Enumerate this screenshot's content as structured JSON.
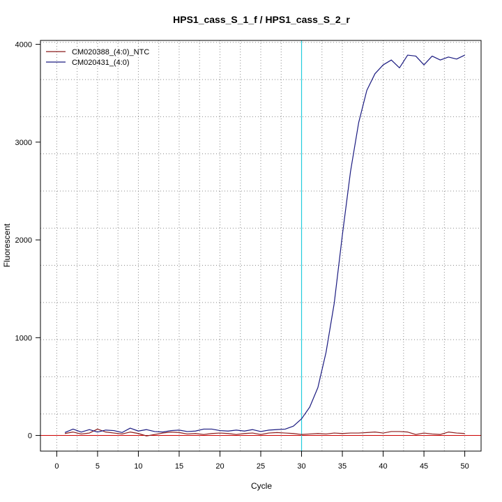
{
  "chart_data": {
    "type": "line",
    "title": "HPS1_cass_S_1_f / HPS1_cass_S_2_r",
    "xlabel": "Cycle",
    "ylabel": "Fluorescent",
    "xlim": [
      -2,
      52
    ],
    "ylim": [
      -160,
      4040
    ],
    "x_ticks": [
      0,
      5,
      10,
      15,
      20,
      25,
      30,
      35,
      40,
      45,
      50
    ],
    "y_ticks": [
      0,
      1000,
      2000,
      3000,
      4000
    ],
    "x_tick_labels": [
      "0",
      "5",
      "10",
      "15",
      "20",
      "25",
      "30",
      "35",
      "40",
      "45",
      "50"
    ],
    "y_tick_labels": [
      "0",
      "1000",
      "2000",
      "3000",
      "4000"
    ],
    "grid": true,
    "grid_x_every": 2.5,
    "grid_y_every": 380,
    "threshold_x": 30,
    "threshold_color": "#22ccdd",
    "baseline_y": 0,
    "baseline_color": "#cc0000",
    "legend_position": "top-left",
    "x": [
      1,
      2,
      3,
      4,
      5,
      6,
      7,
      8,
      9,
      10,
      11,
      12,
      13,
      14,
      15,
      16,
      17,
      18,
      19,
      20,
      21,
      22,
      23,
      24,
      25,
      26,
      27,
      28,
      29,
      30,
      31,
      32,
      33,
      34,
      35,
      36,
      37,
      38,
      39,
      40,
      41,
      42,
      43,
      44,
      45,
      46,
      47,
      48,
      49,
      50
    ],
    "series": [
      {
        "name": "CM020388_(4:0)_NTC",
        "color": "#8b1a1a",
        "values": [
          20,
          35,
          15,
          25,
          65,
          35,
          25,
          15,
          35,
          20,
          -5,
          10,
          25,
          35,
          30,
          15,
          20,
          10,
          20,
          25,
          20,
          10,
          20,
          25,
          10,
          25,
          30,
          25,
          20,
          10,
          15,
          20,
          15,
          25,
          20,
          25,
          25,
          30,
          35,
          25,
          40,
          40,
          35,
          10,
          25,
          15,
          10,
          35,
          25,
          20
        ]
      },
      {
        "name": "CM020431_(4:0)",
        "color": "#1a1a80",
        "values": [
          30,
          65,
          35,
          60,
          35,
          55,
          50,
          30,
          75,
          45,
          60,
          40,
          35,
          50,
          55,
          40,
          45,
          65,
          65,
          50,
          45,
          55,
          45,
          60,
          40,
          55,
          60,
          65,
          95,
          170,
          290,
          490,
          850,
          1350,
          2050,
          2700,
          3200,
          3530,
          3700,
          3790,
          3840,
          3760,
          3890,
          3880,
          3790,
          3880,
          3840,
          3870,
          3850,
          3890
        ]
      }
    ]
  }
}
